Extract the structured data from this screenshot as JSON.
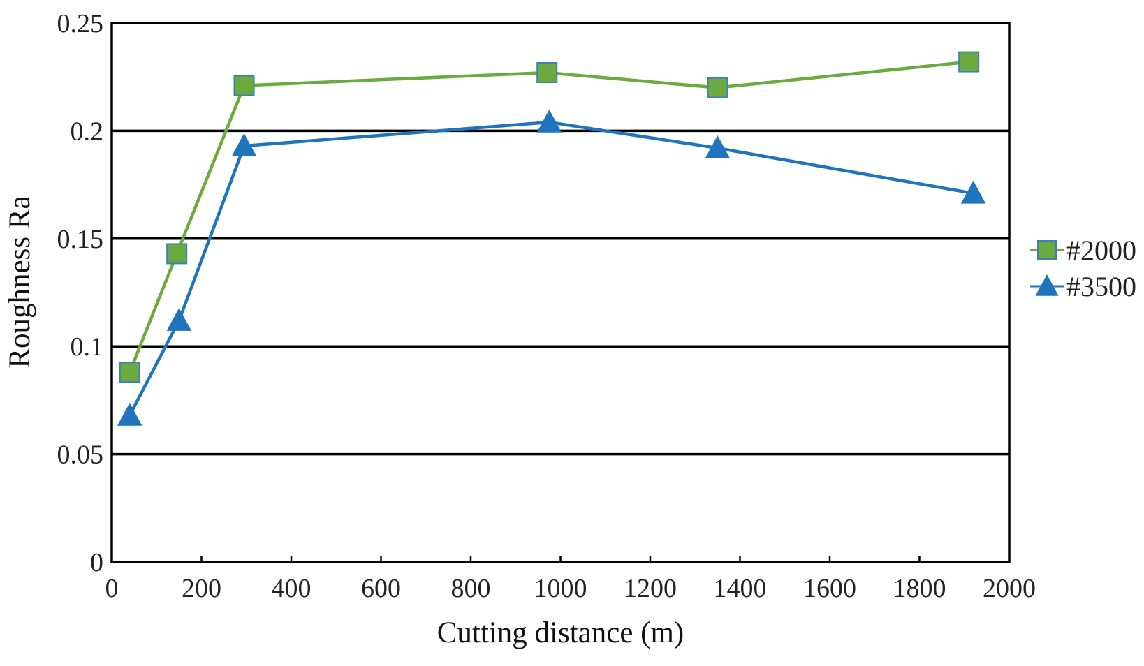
{
  "chart_data": {
    "type": "line",
    "xlabel": "Cutting distance (m)",
    "ylabel": "Roughness Ra",
    "xlim": [
      0,
      2000
    ],
    "ylim": [
      0,
      0.25
    ],
    "x_ticks": [
      "0",
      "200",
      "400",
      "600",
      "800",
      "1000",
      "1200",
      "1400",
      "1600",
      "1800",
      "2000"
    ],
    "x_tick_values": [
      0,
      200,
      400,
      600,
      800,
      1000,
      1200,
      1400,
      1600,
      1800,
      2000
    ],
    "y_ticks": [
      "0",
      "0.05",
      "0.1",
      "0.15",
      "0.2",
      "0.25"
    ],
    "y_tick_values": [
      0,
      0.05,
      0.1,
      0.15,
      0.2,
      0.25
    ],
    "grid": "horizontal",
    "legend_position": "right",
    "series": [
      {
        "name": "#2000",
        "marker": "square",
        "color": "#6aaa3e",
        "marker_fill": "#6aaa3e",
        "marker_edge": "#3d7fb8",
        "x": [
          40,
          145,
          295,
          970,
          1350,
          1910
        ],
        "values": [
          0.088,
          0.143,
          0.221,
          0.227,
          0.22,
          0.232
        ]
      },
      {
        "name": "#3500",
        "marker": "triangle",
        "color": "#1f74bd",
        "marker_fill": "#1f74bd",
        "marker_edge": "#1f74bd",
        "x": [
          40,
          150,
          295,
          975,
          1350,
          1920
        ],
        "values": [
          0.068,
          0.112,
          0.193,
          0.204,
          0.192,
          0.171
        ]
      }
    ]
  }
}
